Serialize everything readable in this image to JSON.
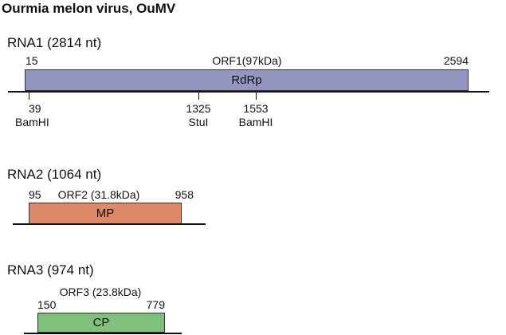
{
  "title": "Ourmia melon virus, OuMV",
  "rna1": {
    "label": "RNA1 (2814 nt)",
    "start": "15",
    "orf": "ORF1(97kDa)",
    "end": "2594",
    "protein": "RdRp",
    "colors": {
      "box": "#9595c1"
    },
    "sites": [
      {
        "pos": "39",
        "enzyme": "BamHI"
      },
      {
        "pos": "1325",
        "enzyme": "StuI"
      },
      {
        "pos": "1553",
        "enzyme": "BamHI"
      }
    ]
  },
  "rna2": {
    "label": "RNA2 (1064 nt)",
    "start": "95",
    "orf": "ORF2 (31.8kDa)",
    "end": "958",
    "protein": "MP",
    "colors": {
      "box": "#dd8866"
    }
  },
  "rna3": {
    "label": "RNA3 (974 nt)",
    "orf": "ORF3 (23.8kDa)",
    "start": "150",
    "end": "779",
    "protein": "CP",
    "colors": {
      "box": "#7fc07c"
    }
  }
}
